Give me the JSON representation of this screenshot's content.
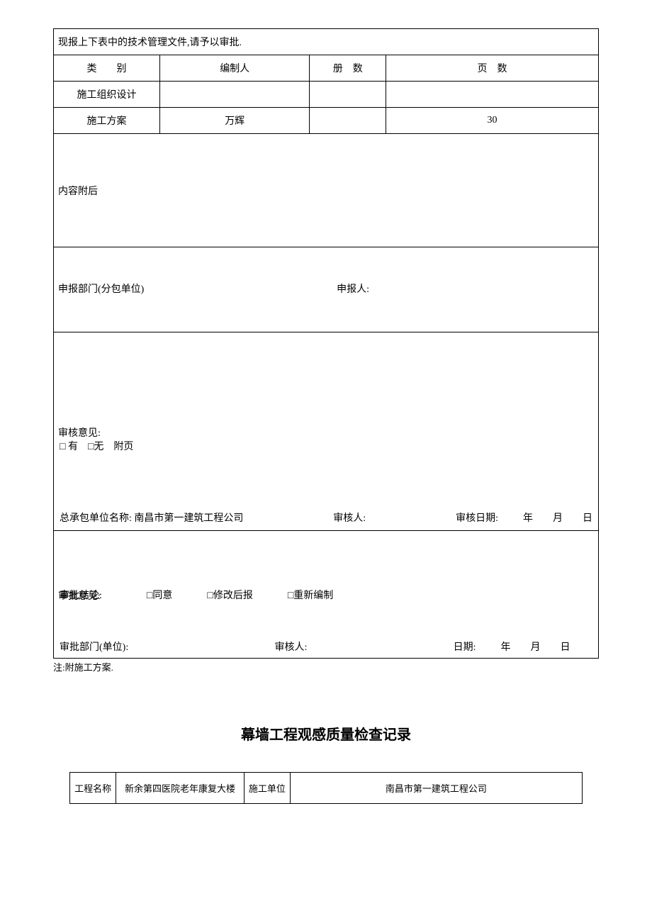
{
  "table1": {
    "intro": "现报上下表中的技术管理文件,请予以审批.",
    "headers": {
      "category": "类　　别",
      "author": "编制人",
      "volumes": "册　数",
      "pages": "页　数"
    },
    "rows": [
      {
        "category": "施工组织设计",
        "author": "",
        "volumes": "",
        "pages": ""
      },
      {
        "category": "施工方案",
        "author": "万辉",
        "volumes": "",
        "pages": "30"
      }
    ],
    "content_label": "内容附后",
    "middle": {
      "dept_label": "申报部门(分包单位)",
      "applicant_label": "申报人:"
    },
    "review": {
      "opinion_label": "审核意见:",
      "attach_label": "□ 有　□无　附页",
      "contractor_label": "总承包单位名称:",
      "contractor_value": "南昌市第一建筑工程公司",
      "reviewer_label": "审核人:",
      "date_label": "审核日期:",
      "date_value": "年　　月　　日"
    },
    "approval": {
      "opinion_label": "审批意见:",
      "conclusion_label": "审批结论:",
      "opt1": "□同意",
      "opt2": "□修改后报",
      "opt3": "□重新编制",
      "dept_label": "审批部门(单位):",
      "reviewer_label": "审核人:",
      "date_label": "日期:",
      "date_value": "年　　月　　日"
    }
  },
  "note": "注:附施工方案.",
  "title2": "幕墙工程观感质量检查记录",
  "table2": {
    "r1": {
      "c1": "工程名称",
      "c2": "新余第四医院老年康复大楼",
      "c3": "施工单位",
      "c4": "南昌市第一建筑工程公司"
    }
  }
}
